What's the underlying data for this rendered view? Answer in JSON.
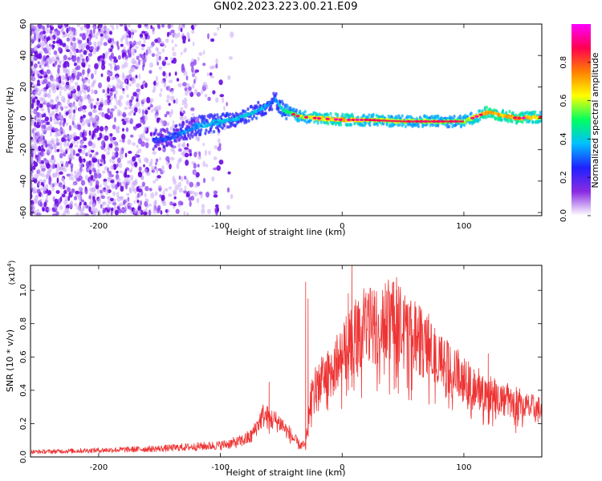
{
  "title": "GN02.2023.223.00.21.E09",
  "chart_data": [
    {
      "type": "heatmap",
      "xlabel": "Height of straight line (km)",
      "ylabel": "Frequency (Hz)",
      "xlim": [
        -256,
        164
      ],
      "ylim": [
        -62,
        60
      ],
      "x_ticks": [
        "-200",
        "-100",
        "0",
        "100"
      ],
      "x_tick_values": [
        -200,
        -100,
        0,
        100
      ],
      "y_ticks": [
        "60",
        "40",
        "20",
        "0",
        "-20",
        "-40",
        "-60"
      ],
      "y_tick_values": [
        60,
        40,
        20,
        0,
        -20,
        -40,
        -60
      ],
      "colorbar": {
        "label": "Normalized spectral amplitude",
        "range": [
          0,
          1
        ],
        "ticks": [
          "0.0",
          "0.2",
          "0.4",
          "0.6",
          "0.8"
        ],
        "tick_values": [
          0,
          0.2,
          0.4,
          0.6,
          0.8
        ],
        "colormap": [
          "#ffffff",
          "#8a2be2",
          "#2020ff",
          "#00bfff",
          "#00ff60",
          "#ffff00",
          "#ff8000",
          "#ff0050",
          "#ff00ff"
        ]
      },
      "ridge": {
        "x": [
          -155,
          -140,
          -120,
          -105,
          -90,
          -75,
          -62,
          -55,
          -48,
          -35,
          -20,
          0,
          20,
          50,
          80,
          100,
          110,
          120,
          130,
          145,
          164
        ],
        "y": [
          -14,
          -12,
          -5,
          -3,
          -1,
          3,
          8,
          12,
          5,
          1,
          0,
          -1,
          -1,
          -2,
          -2,
          -2,
          1,
          4,
          2,
          0,
          1
        ],
        "amplitude": [
          0.25,
          0.3,
          0.4,
          0.45,
          0.45,
          0.45,
          0.4,
          0.35,
          0.55,
          0.7,
          0.8,
          0.85,
          0.75,
          0.7,
          0.7,
          0.65,
          0.8,
          0.9,
          0.85,
          0.9,
          0.8
        ]
      },
      "noise_region": {
        "x_end": -120,
        "amplitude": 0.15
      }
    },
    {
      "type": "line",
      "xlabel": "Height of straight line (km)",
      "ylabel": "SNR (10 * v/v)",
      "y_scale_label": "(x10",
      "y_scale_exp": "4",
      "y_scale_close": ")",
      "xlim": [
        -256,
        164
      ],
      "ylim": [
        0,
        1.15
      ],
      "x_ticks": [
        "-200",
        "-100",
        "0",
        "100"
      ],
      "x_tick_values": [
        -200,
        -100,
        0,
        100
      ],
      "y_ticks": [
        "0.0",
        "0.2",
        "0.4",
        "0.6",
        "0.8",
        "1.0"
      ],
      "y_tick_values": [
        0,
        0.2,
        0.4,
        0.6,
        0.8,
        1.0
      ],
      "series": [
        {
          "color": "#ee3333",
          "envelope": {
            "x": [
              -256,
              -200,
              -150,
              -100,
              -85,
              -75,
              -65,
              -50,
              -45,
              -35,
              -30,
              -25,
              -20,
              -10,
              0,
              10,
              20,
              30,
              40,
              50,
              60,
              70,
              80,
              90,
              100,
              110,
              120,
              130,
              140,
              150,
              164
            ],
            "y": [
              0.03,
              0.04,
              0.05,
              0.07,
              0.09,
              0.12,
              0.25,
              0.2,
              0.15,
              0.07,
              0.07,
              0.4,
              0.45,
              0.5,
              0.62,
              0.72,
              0.78,
              0.8,
              0.82,
              0.78,
              0.72,
              0.65,
              0.57,
              0.52,
              0.46,
              0.42,
              0.38,
              0.35,
              0.32,
              0.3,
              0.28
            ]
          },
          "spikes": [
            {
              "x": -30,
              "y": 1.05
            },
            {
              "x": -28,
              "y": 0.95
            },
            {
              "x": 8,
              "y": 1.15
            },
            {
              "x": 5,
              "y": 0.98
            },
            {
              "x": -60,
              "y": 0.45
            },
            {
              "x": 45,
              "y": 1.0
            },
            {
              "x": 120,
              "y": 0.62
            }
          ]
        }
      ]
    }
  ]
}
